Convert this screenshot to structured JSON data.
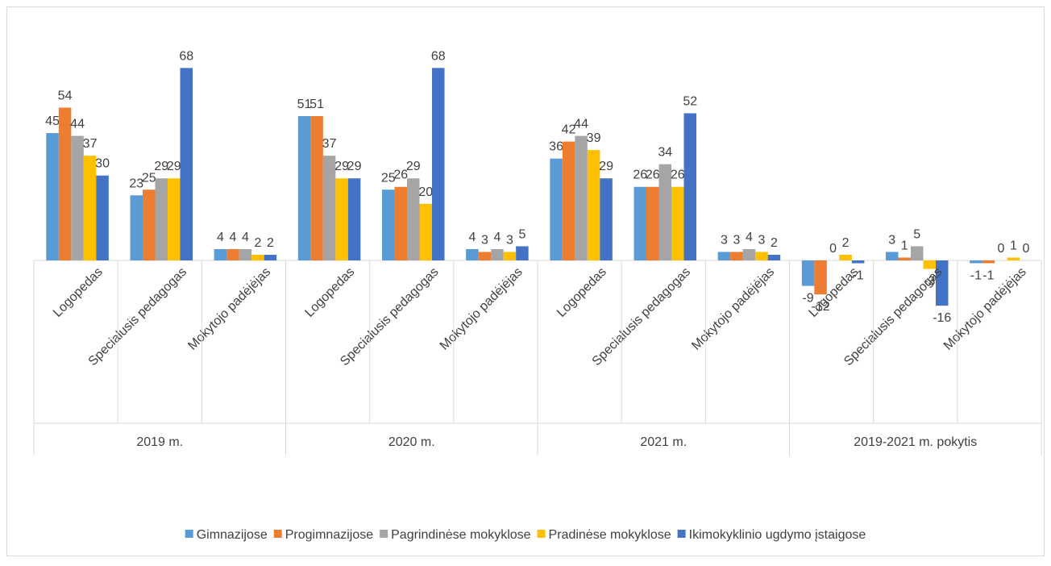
{
  "chart_data": {
    "type": "bar",
    "groups": [
      "2019 m.",
      "2020 m.",
      "2021 m.",
      "2019-2021 m. pokytis"
    ],
    "categories": [
      "Logopedas",
      "Specialusis pedagogas",
      "Mokytojo padėjėjas",
      "Logopedas",
      "Specialusis pedagogas",
      "Mokytojo padėjėjas",
      "Logopedas",
      "Specialusis pedagogas",
      "Mokytojo padėjėjas",
      "Logopedas",
      "Specialusis pedagogas",
      "Mokytojo padėjėjas"
    ],
    "series": [
      {
        "name": "Gimnazijose",
        "color": "#5b9bd5",
        "values": [
          45,
          23,
          4,
          51,
          25,
          4,
          36,
          26,
          3,
          -9,
          3,
          -1
        ]
      },
      {
        "name": "Progimnazijose",
        "color": "#ed7d31",
        "values": [
          54,
          25,
          4,
          51,
          26,
          3,
          42,
          26,
          3,
          -12,
          1,
          -1
        ]
      },
      {
        "name": "Pagrindinėse mokyklose",
        "color": "#a5a5a5",
        "values": [
          44,
          29,
          4,
          37,
          29,
          4,
          44,
          34,
          4,
          0,
          5,
          0
        ]
      },
      {
        "name": "Pradinėse mokyklose",
        "color": "#ffc000",
        "values": [
          37,
          29,
          2,
          29,
          20,
          3,
          39,
          26,
          3,
          2,
          -3,
          1
        ]
      },
      {
        "name": "Ikimokyklinio ugdymo įstaigose",
        "color": "#4472c4",
        "values": [
          30,
          68,
          2,
          29,
          68,
          5,
          29,
          52,
          2,
          -1,
          -16,
          0
        ]
      }
    ],
    "ylim": [
      -20,
      70
    ],
    "legend": "bottom"
  }
}
